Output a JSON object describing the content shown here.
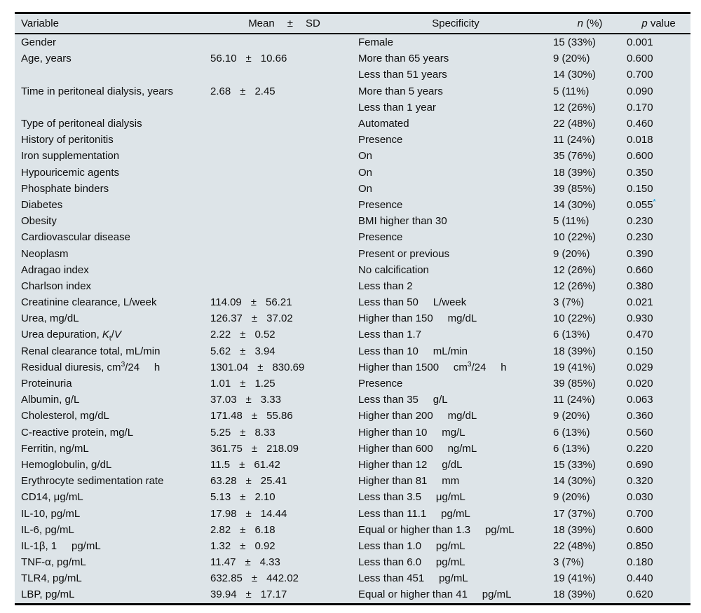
{
  "colors": {
    "table_background": "#dde4e8",
    "rule_color": "#000000",
    "text_color": "#0e0e0e",
    "asterisk_color": "#2aa9e2"
  },
  "table": {
    "header": {
      "variable": "Variable",
      "mean": "Mean",
      "plus_minus": "±",
      "sd": "SD",
      "specificity": "Specificity",
      "n_percent_html": "<i>n</i> (%)",
      "p_value_html": "<i>p</i> value"
    },
    "rows": [
      {
        "v": "Gender",
        "m": "",
        "sd": "",
        "s": "Female",
        "n": "15 (33%)",
        "p": "0.001",
        "star": false
      },
      {
        "v": "Age, years",
        "m": "56.10",
        "sd": "10.66",
        "s": "More than 65 years",
        "n": "9 (20%)",
        "p": "0.600",
        "star": false
      },
      {
        "v": "",
        "m": "",
        "sd": "",
        "s": "Less than 51 years",
        "n": "14 (30%)",
        "p": "0.700",
        "star": false
      },
      {
        "v": "Time in peritoneal dialysis, years",
        "m": "2.68",
        "sd": "2.45",
        "s": "More than 5 years",
        "n": "5 (11%)",
        "p": "0.090",
        "star": false
      },
      {
        "v": "",
        "m": "",
        "sd": "",
        "s": "Less than 1 year",
        "n": "12 (26%)",
        "p": "0.170",
        "star": false
      },
      {
        "v": "Type of peritoneal dialysis",
        "m": "",
        "sd": "",
        "s": "Automated",
        "n": "22 (48%)",
        "p": "0.460",
        "star": false
      },
      {
        "v": "History of peritonitis",
        "m": "",
        "sd": "",
        "s": "Presence",
        "n": "11 (24%)",
        "p": "0.018",
        "star": false
      },
      {
        "v": "Iron supplementation",
        "m": "",
        "sd": "",
        "s": "On",
        "n": "35 (76%)",
        "p": "0.600",
        "star": false
      },
      {
        "v": "Hypouricemic agents",
        "m": "",
        "sd": "",
        "s": "On",
        "n": "18 (39%)",
        "p": "0.350",
        "star": false
      },
      {
        "v": "Phosphate binders",
        "m": "",
        "sd": "",
        "s": "On",
        "n": "39 (85%)",
        "p": "0.150",
        "star": false
      },
      {
        "v": "Diabetes",
        "m": "",
        "sd": "",
        "s": "Presence",
        "n": "14 (30%)",
        "p": "0.055",
        "star": true
      },
      {
        "v": "Obesity",
        "m": "",
        "sd": "",
        "s": "BMI higher than 30",
        "n": "5 (11%)",
        "p": "0.230",
        "star": false
      },
      {
        "v": "Cardiovascular disease",
        "m": "",
        "sd": "",
        "s": "Presence",
        "n": "10 (22%)",
        "p": "0.230",
        "star": false
      },
      {
        "v": "Neoplasm",
        "m": "",
        "sd": "",
        "s": "Present or previous",
        "n": "9 (20%)",
        "p": "0.390",
        "star": false
      },
      {
        "v": "Adragao index",
        "m": "",
        "sd": "",
        "s": "No calcification",
        "n": "12 (26%)",
        "p": "0.660",
        "star": false
      },
      {
        "v": "Charlson index",
        "m": "",
        "sd": "",
        "s": "Less than 2",
        "n": "12 (26%)",
        "p": "0.380",
        "star": false
      },
      {
        "v": "Creatinine clearance, L/week",
        "m": "114.09",
        "sd": "56.21",
        "s": "Less than 50     L/week",
        "n": "3 (7%)",
        "p": "0.021",
        "star": false
      },
      {
        "v": "Urea, mg/dL",
        "m": "126.37",
        "sd": "37.02",
        "s": "Higher than 150     mg/dL",
        "n": "10 (22%)",
        "p": "0.930",
        "star": false
      },
      {
        "v": "Urea depuration, <i>K</i><sub>t</sub>/<i>V</i>",
        "m": "2.22",
        "sd": "0.52",
        "s": "Less than 1.7",
        "n": "6 (13%)",
        "p": "0.470",
        "star": false
      },
      {
        "v": "Renal clearance total, mL/min",
        "m": "5.62",
        "sd": "3.94",
        "s": "Less than 10     mL/min",
        "n": "18 (39%)",
        "p": "0.150",
        "star": false
      },
      {
        "v": "Residual diuresis, cm<sup>3</sup>/24     h",
        "m": "1301.04",
        "sd": "830.69",
        "s": "Higher than 1500     cm<sup>3</sup>/24     h",
        "n": "19 (41%)",
        "p": "0.029",
        "star": false
      },
      {
        "v": "Proteinuria",
        "m": "1.01",
        "sd": "1.25",
        "s": "Presence",
        "n": "39 (85%)",
        "p": "0.020",
        "star": false
      },
      {
        "v": "Albumin, g/L",
        "m": "37.03",
        "sd": "3.33",
        "s": "Less than 35     g/L",
        "n": "11 (24%)",
        "p": "0.063",
        "star": false
      },
      {
        "v": "Cholesterol, mg/dL",
        "m": "171.48",
        "sd": "55.86",
        "s": "Higher than 200     mg/dL",
        "n": "9 (20%)",
        "p": "0.360",
        "star": false
      },
      {
        "v": "C-reactive protein, mg/L",
        "m": "5.25",
        "sd": "8.33",
        "s": "Higher than 10     mg/L",
        "n": "6 (13%)",
        "p": "0.560",
        "star": false
      },
      {
        "v": "Ferritin, ng/mL",
        "m": "361.75",
        "sd": "218.09",
        "s": "Higher than 600     ng/mL",
        "n": "6 (13%)",
        "p": "0.220",
        "star": false
      },
      {
        "v": "Hemoglobulin, g/dL",
        "m": "11.5",
        "sd": "61.42",
        "s": "Higher than 12     g/dL",
        "n": "15 (33%)",
        "p": "0.690",
        "star": false
      },
      {
        "v": "Erythrocyte sedimentation rate",
        "m": "63.28",
        "sd": "25.41",
        "s": "Higher than 81     mm",
        "n": "14 (30%)",
        "p": "0.320",
        "star": false
      },
      {
        "v": "CD14, μg/mL",
        "m": "5.13",
        "sd": "2.10",
        "s": "Less than 3.5     μg/mL",
        "n": "9 (20%)",
        "p": "0.030",
        "star": false
      },
      {
        "v": "IL-10, pg/mL",
        "m": "17.98",
        "sd": "14.44",
        "s": "Less than 11.1     pg/mL",
        "n": "17 (37%)",
        "p": "0.700",
        "star": false
      },
      {
        "v": "IL-6, pg/mL",
        "m": "2.82",
        "sd": "6.18",
        "s": "Equal or higher than 1.3     pg/mL",
        "n": "18 (39%)",
        "p": "0.600",
        "star": false
      },
      {
        "v": "IL-1β, 1     pg/mL",
        "m": "1.32",
        "sd": "0.92",
        "s": "Less than 1.0     pg/mL",
        "n": "22 (48%)",
        "p": "0.850",
        "star": false
      },
      {
        "v": "TNF-α, pg/mL",
        "m": "11.47",
        "sd": "4.33",
        "s": "Less than 6.0     pg/mL",
        "n": "3 (7%)",
        "p": "0.180",
        "star": false
      },
      {
        "v": "TLR4, pg/mL",
        "m": "632.85",
        "sd": "442.02",
        "s": "Less than 451     pg/mL",
        "n": "19 (41%)",
        "p": "0.440",
        "star": false
      },
      {
        "v": "LBP, pg/mL",
        "m": "39.94",
        "sd": "17.17",
        "s": "Equal or higher than 41     pg/mL",
        "n": "18 (39%)",
        "p": "0.620",
        "star": false
      }
    ]
  }
}
